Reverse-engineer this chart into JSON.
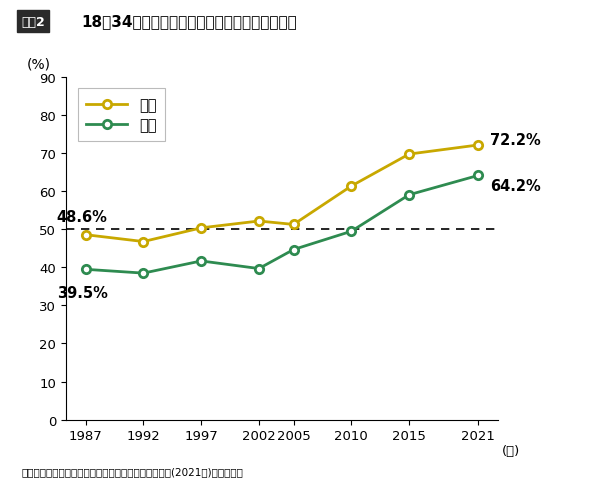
{
  "title": "18～34歳未婚者の交際相手がいない割合の推移",
  "title_box": "図表2",
  "ylabel": "(%)",
  "xlabel_suffix": "(年)",
  "footnote": "国立社会保障・人口問題研究所「出生動向基本調査」(2021年)を基に作成",
  "years_male": [
    1987,
    1992,
    1997,
    2002,
    2005,
    2010,
    2015,
    2021
  ],
  "values_male": [
    48.6,
    46.8,
    50.4,
    52.2,
    51.3,
    61.4,
    69.8,
    72.2
  ],
  "years_female": [
    1987,
    1992,
    1997,
    2002,
    2005,
    2010,
    2015,
    2021
  ],
  "values_female": [
    39.5,
    38.5,
    41.7,
    39.7,
    44.7,
    49.5,
    59.1,
    64.2
  ],
  "male_color": "#C8A800",
  "female_color": "#2E8B50",
  "male_label": "男性",
  "female_label": "女性",
  "ylim": [
    0,
    90
  ],
  "yticks": [
    0,
    10,
    20,
    30,
    40,
    50,
    60,
    70,
    80,
    90
  ],
  "xticks": [
    1987,
    1992,
    1997,
    2002,
    2005,
    2010,
    2015,
    2021
  ],
  "hline_y": 50,
  "annotation_male_start": "48.6%",
  "annotation_female_start": "39.5%",
  "annotation_male_end": "72.2%",
  "annotation_female_end": "64.2%",
  "bg_color": "#ffffff",
  "plot_bg_color": "#ffffff"
}
